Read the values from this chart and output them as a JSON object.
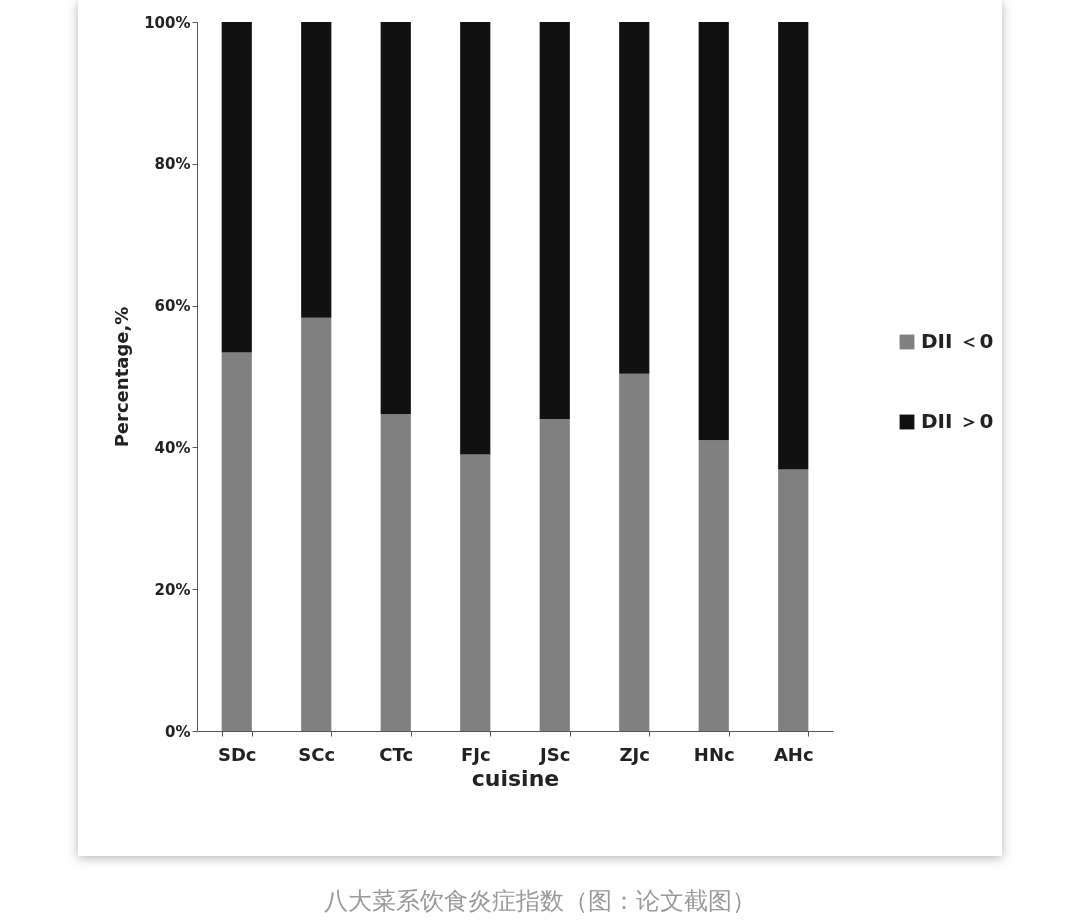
{
  "chart_data": {
    "type": "bar",
    "stacked": true,
    "xlabel": "cuisine",
    "ylabel": "Percentage,%",
    "categories": [
      "SDc",
      "SCc",
      "CTc",
      "FJc",
      "JSc",
      "ZJc",
      "HNc",
      "AHc"
    ],
    "series": [
      {
        "name": "DII ＜0",
        "color": "#808080",
        "values": [
          53.4,
          58.3,
          44.7,
          39.0,
          44.0,
          50.4,
          41.0,
          36.9
        ]
      },
      {
        "name": "DII ＞0",
        "color": "#111111",
        "values": [
          46.6,
          41.7,
          55.3,
          61.0,
          56.0,
          49.6,
          59.0,
          63.1
        ]
      }
    ],
    "ylim": [
      0,
      100
    ],
    "yticks": [
      {
        "value": 0,
        "label": "0%"
      },
      {
        "value": 20,
        "label": "20%"
      },
      {
        "value": 40,
        "label": "40%"
      },
      {
        "value": 60,
        "label": "60%"
      },
      {
        "value": 80,
        "label": "80%"
      },
      {
        "value": 100,
        "label": "100%"
      }
    ],
    "legend": "right",
    "grid": false,
    "annotations": [
      "八大菜系饮食炎症指数（图：论文截图）"
    ]
  }
}
